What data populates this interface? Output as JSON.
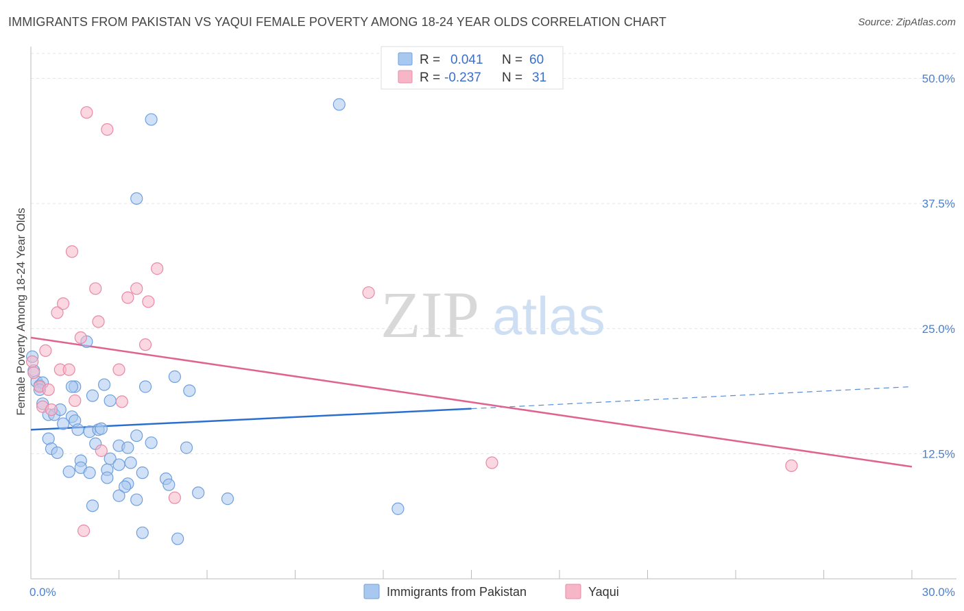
{
  "header": {
    "title": "IMMIGRANTS FROM PAKISTAN VS YAQUI FEMALE POVERTY AMONG 18-24 YEAR OLDS CORRELATION CHART",
    "source": "Source: ZipAtlas.com"
  },
  "watermark": {
    "zip": "ZIP",
    "atlas": "atlas"
  },
  "legend": {
    "rows": [
      {
        "r_label": "R =",
        "r_value": "0.041",
        "n_label": "N =",
        "n_value": "60",
        "color": "#a9c8f0"
      },
      {
        "r_label": "R =",
        "r_value": "-0.237",
        "n_label": "N =",
        "n_value": "31",
        "color": "#f7b6c8"
      }
    ]
  },
  "chart_data": {
    "type": "scatter",
    "title": "IMMIGRANTS FROM PAKISTAN VS YAQUI FEMALE POVERTY AMONG 18-24 YEAR OLDS CORRELATION CHART",
    "xlabel": "",
    "ylabel": "Female Poverty Among 18-24 Year Olds",
    "xlim": [
      0,
      30
    ],
    "ylim": [
      0,
      52.5
    ],
    "x_tick_labels": [
      "0.0%",
      "30.0%"
    ],
    "y_ticks": [
      12.5,
      25.0,
      37.5,
      50.0
    ],
    "y_tick_labels": [
      "12.5%",
      "25.0%",
      "37.5%",
      "50.0%"
    ],
    "grid": true,
    "series": [
      {
        "name": "Immigrants from Pakistan",
        "color": "#a9c8f0",
        "stroke": "#6f9fdc",
        "trend": {
          "x": [
            0,
            15
          ],
          "y": [
            14.9,
            17.0
          ],
          "color": "#2a6fd0",
          "dashed_to": [
            30,
            19.2
          ]
        },
        "points": [
          [
            0.05,
            22.2
          ],
          [
            0.1,
            20.8
          ],
          [
            0.2,
            19.7
          ],
          [
            0.3,
            19.3
          ],
          [
            0.4,
            19.6
          ],
          [
            0.3,
            18.9
          ],
          [
            0.4,
            17.5
          ],
          [
            0.6,
            16.4
          ],
          [
            0.8,
            16.4
          ],
          [
            1.0,
            16.9
          ],
          [
            1.1,
            15.5
          ],
          [
            1.5,
            19.2
          ],
          [
            1.4,
            19.2
          ],
          [
            1.4,
            16.2
          ],
          [
            1.5,
            15.8
          ],
          [
            1.6,
            14.9
          ],
          [
            2.0,
            14.7
          ],
          [
            2.3,
            14.9
          ],
          [
            2.1,
            18.3
          ],
          [
            2.4,
            15.0
          ],
          [
            2.5,
            19.4
          ],
          [
            0.6,
            14.0
          ],
          [
            0.7,
            13.0
          ],
          [
            0.9,
            12.6
          ],
          [
            2.2,
            13.5
          ],
          [
            3.0,
            13.3
          ],
          [
            3.3,
            13.1
          ],
          [
            3.6,
            14.3
          ],
          [
            4.1,
            13.6
          ],
          [
            2.7,
            17.8
          ],
          [
            3.9,
            19.2
          ],
          [
            4.9,
            20.2
          ],
          [
            5.4,
            18.8
          ],
          [
            5.3,
            13.1
          ],
          [
            1.7,
            11.8
          ],
          [
            1.3,
            10.7
          ],
          [
            1.7,
            11.1
          ],
          [
            2.0,
            10.6
          ],
          [
            2.6,
            10.9
          ],
          [
            2.7,
            12.0
          ],
          [
            2.6,
            10.1
          ],
          [
            3.0,
            11.4
          ],
          [
            3.4,
            11.6
          ],
          [
            3.8,
            10.6
          ],
          [
            3.3,
            9.5
          ],
          [
            3.2,
            9.2
          ],
          [
            3.0,
            8.3
          ],
          [
            3.6,
            7.9
          ],
          [
            4.6,
            10.0
          ],
          [
            4.7,
            9.4
          ],
          [
            5.7,
            8.6
          ],
          [
            6.7,
            8.0
          ],
          [
            2.1,
            7.3
          ],
          [
            3.8,
            4.6
          ],
          [
            5.0,
            4.0
          ],
          [
            12.5,
            7.0
          ],
          [
            1.9,
            23.7
          ],
          [
            3.6,
            38.0
          ],
          [
            4.1,
            45.9
          ],
          [
            10.5,
            47.4
          ]
        ]
      },
      {
        "name": "Yaqui",
        "color": "#f7b6c8",
        "stroke": "#e889a6",
        "trend": {
          "x": [
            0,
            30
          ],
          "y": [
            24.1,
            11.2
          ],
          "color": "#e0628f"
        },
        "points": [
          [
            0.05,
            21.7
          ],
          [
            0.1,
            20.6
          ],
          [
            0.3,
            19.2
          ],
          [
            0.4,
            17.2
          ],
          [
            0.5,
            22.8
          ],
          [
            0.6,
            18.9
          ],
          [
            0.7,
            16.9
          ],
          [
            0.9,
            26.6
          ],
          [
            1.1,
            27.5
          ],
          [
            1.0,
            20.9
          ],
          [
            1.3,
            20.9
          ],
          [
            1.4,
            32.7
          ],
          [
            1.5,
            17.8
          ],
          [
            1.7,
            24.1
          ],
          [
            1.8,
            4.8
          ],
          [
            1.9,
            46.6
          ],
          [
            2.2,
            29.0
          ],
          [
            2.3,
            25.7
          ],
          [
            2.4,
            12.8
          ],
          [
            2.6,
            44.9
          ],
          [
            3.0,
            20.9
          ],
          [
            3.1,
            17.7
          ],
          [
            3.3,
            28.1
          ],
          [
            3.6,
            29.0
          ],
          [
            3.9,
            23.4
          ],
          [
            4.0,
            27.7
          ],
          [
            4.3,
            31.0
          ],
          [
            4.9,
            8.1
          ],
          [
            11.5,
            28.6
          ],
          [
            15.7,
            11.6
          ],
          [
            25.9,
            11.3
          ]
        ]
      }
    ]
  }
}
